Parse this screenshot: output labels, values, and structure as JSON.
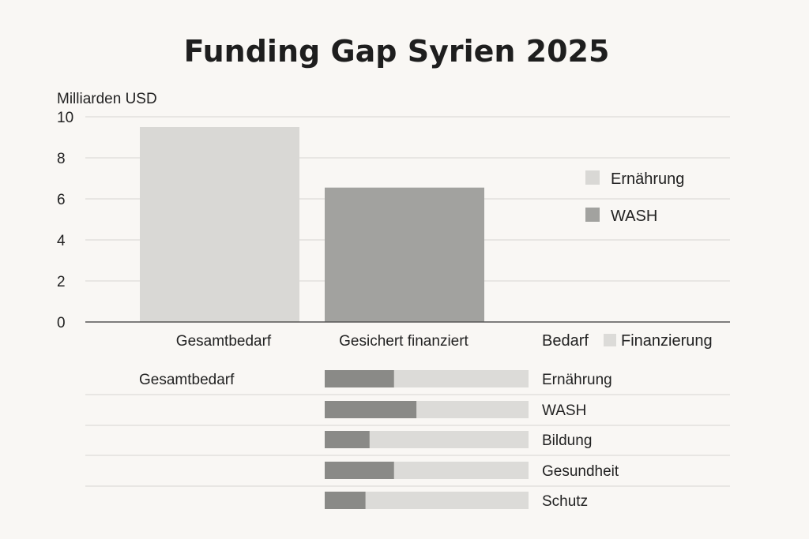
{
  "colors": {
    "background": "#f9f7f4",
    "gridline": "#d6d6d2",
    "axis": "#555555",
    "light": "#d9d8d5",
    "dark": "#a2a29f",
    "funded": "#8a8a87",
    "track": "#dcdbd8"
  },
  "chart_data": [
    {
      "type": "bar",
      "title": "Funding Gap Syrien 2025",
      "ylabel": "Milliarden USD",
      "xlabel": "",
      "ylim": [
        0,
        10
      ],
      "yticks": [
        0,
        2,
        4,
        6,
        8,
        10
      ],
      "grid": true,
      "categories": [
        "Gesamtbedarf",
        "Gesichert finanziert"
      ],
      "values": [
        9.5,
        6.55
      ],
      "legend": {
        "placement": "right",
        "entries": [
          {
            "name": "Ernährung",
            "color": "#d9d8d5"
          },
          {
            "name": "WASH",
            "color": "#a2a29f"
          }
        ]
      }
    },
    {
      "type": "bar",
      "orientation": "horizontal-stacked",
      "row_label": "Gesamtbedarf",
      "legend": {
        "placement": "top",
        "entries": [
          {
            "name": "Bedarf",
            "color": ""
          },
          {
            "name": "Finanzierung",
            "color": "#dcdbd8"
          }
        ]
      },
      "categories": [
        "Ernährung",
        "WASH",
        "Bildung",
        "Gesundheit",
        "Schutz"
      ],
      "series": [
        {
          "name": "Finanzierung",
          "values": [
            0.34,
            0.45,
            0.22,
            0.34,
            0.2
          ]
        }
      ],
      "xlim": [
        0,
        1
      ]
    }
  ]
}
